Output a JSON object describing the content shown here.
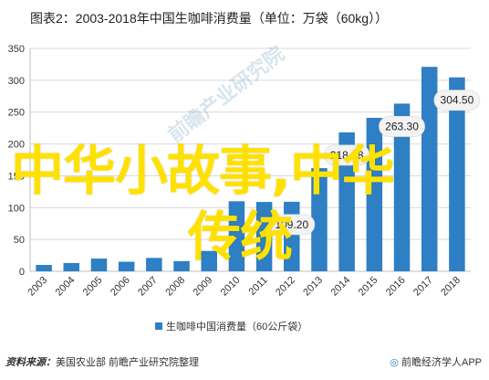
{
  "title": "图表2：2003-2018年中国生咖啡消费量（单位：万袋（60kg））",
  "source_label": "资料来源：",
  "source_text": "美国农业部 前瞻产业研究院整理",
  "brand_eye": "◎",
  "brand_text": "前瞻经济学人APP",
  "overlay": {
    "line1": "中华小故事,中华",
    "line2": "传统"
  },
  "watermark": "前瞻产业研究院",
  "colors": {
    "bar": "#2e7fc4",
    "grid": "#d9d9d9",
    "bubble_fill": "#f3f3f3",
    "overlay": "#ffe100"
  },
  "chart_data": {
    "type": "bar",
    "categories": [
      "2003",
      "2004",
      "2005",
      "2006",
      "2007",
      "2008",
      "2009",
      "2010",
      "2011",
      "2012",
      "2013",
      "2014",
      "2015",
      "2016",
      "2017",
      "2018"
    ],
    "series": [
      {
        "name": "生咖啡中国消费量（60公斤袋）",
        "values": [
          10,
          13,
          20,
          15,
          21,
          16,
          32,
          110,
          108.9,
          109.2,
          162,
          218.18,
          241,
          263.3,
          321,
          304.5
        ]
      }
    ],
    "data_labels": [
      {
        "category": "2012",
        "text": "109.20"
      },
      {
        "category": "2014",
        "text": "218.18"
      },
      {
        "category": "2016",
        "text": "263.30"
      },
      {
        "category": "2018",
        "text": "304.50"
      }
    ],
    "ylim": [
      0,
      350
    ],
    "yticks": [
      0,
      50,
      100,
      150,
      200,
      250,
      300,
      350
    ],
    "grid": true,
    "legend_position": "bottom",
    "xlabel": "",
    "ylabel": ""
  }
}
